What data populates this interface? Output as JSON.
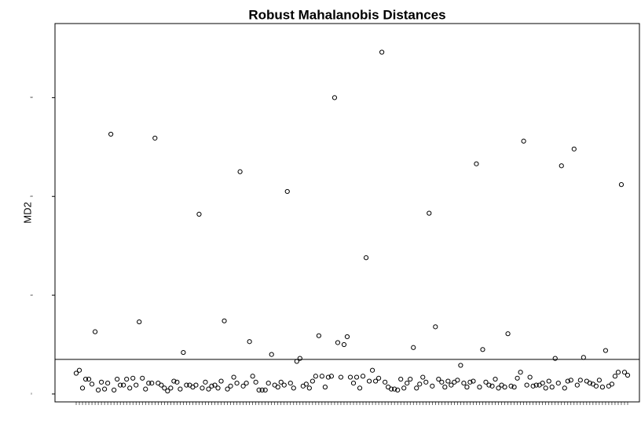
{
  "chart_data": {
    "type": "scatter",
    "title": "Robust Mahalanobis Distances",
    "y_label": "MD2",
    "values": [
      2.1,
      2.4,
      0.6,
      1.5,
      1.5,
      1.0,
      6.3,
      0.4,
      1.2,
      0.5,
      1.1,
      26.3,
      0.4,
      1.5,
      0.9,
      0.9,
      1.5,
      0.6,
      1.6,
      0.9,
      7.3,
      1.6,
      0.5,
      1.1,
      1.1,
      25.9,
      1.1,
      0.9,
      0.6,
      0.3,
      0.6,
      1.3,
      1.2,
      0.5,
      4.2,
      0.9,
      0.9,
      0.7,
      0.9,
      18.2,
      0.6,
      1.2,
      0.5,
      0.8,
      0.9,
      0.6,
      1.3,
      7.4,
      0.5,
      0.8,
      1.7,
      1.1,
      22.5,
      0.8,
      1.1,
      5.3,
      1.8,
      1.2,
      0.4,
      0.4,
      0.4,
      1.1,
      4.0,
      0.9,
      0.7,
      1.2,
      0.9,
      20.5,
      1.1,
      0.6,
      3.3,
      3.6,
      0.8,
      1.0,
      0.6,
      1.3,
      1.8,
      5.9,
      1.8,
      0.7,
      1.7,
      1.8,
      30.0,
      5.2,
      1.7,
      5.0,
      5.8,
      1.7,
      1.1,
      1.7,
      0.6,
      1.8,
      13.8,
      1.3,
      2.4,
      1.3,
      1.6,
      34.6,
      1.2,
      0.7,
      0.5,
      0.5,
      0.4,
      1.5,
      0.6,
      1.1,
      1.5,
      4.7,
      0.6,
      1.0,
      1.7,
      1.2,
      18.3,
      0.8,
      6.8,
      1.5,
      1.2,
      0.7,
      1.3,
      0.9,
      1.2,
      1.4,
      2.9,
      1.1,
      0.7,
      1.2,
      1.3,
      23.3,
      0.7,
      4.5,
      1.2,
      0.9,
      0.8,
      1.5,
      0.6,
      0.9,
      0.7,
      6.1,
      0.8,
      0.7,
      1.6,
      2.2,
      25.6,
      0.9,
      1.7,
      0.8,
      0.9,
      0.9,
      1.1,
      0.6,
      1.3,
      0.7,
      3.6,
      1.1,
      23.1,
      0.6,
      1.3,
      1.4,
      24.8,
      0.9,
      1.4,
      3.7,
      1.3,
      1.1,
      1.0,
      0.8,
      1.4,
      0.7,
      4.4,
      0.8,
      1.0,
      1.8,
      2.2,
      21.2,
      2.2,
      1.9
    ],
    "color": "#000000",
    "hline": 3.5,
    "ylim": [
      -0.8,
      37.5
    ],
    "yticks": [
      0,
      10,
      20,
      30
    ],
    "grid": false
  }
}
